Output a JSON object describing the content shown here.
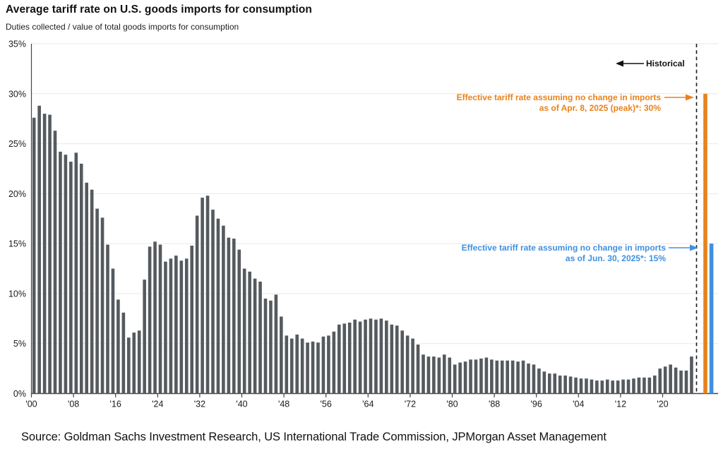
{
  "title": "Average tariff rate on U.S. goods imports for consumption",
  "subtitle": "Duties collected / value of total goods imports for consumption",
  "source": "Source: Goldman Sachs Investment Research, US International Trade Commission, JPMorgan Asset Management",
  "annotations": {
    "historical": {
      "label": "Historical",
      "color": "#111111"
    },
    "peak": {
      "line1": "Effective tariff rate assuming no change in imports",
      "line2": "as of Apr. 8, 2025 (peak)*: 30%",
      "color": "#E8821C"
    },
    "current": {
      "line1": "Effective tariff rate assuming no change in imports",
      "line2": "as of Jun. 30, 2025*: 15%",
      "color": "#4190E0"
    }
  },
  "chart_data": {
    "type": "bar",
    "title": "Average tariff rate on U.S. goods imports for consumption",
    "subtitle": "Duties collected / value of total goods imports for consumption",
    "xlabel": "",
    "ylabel": "",
    "ylim": [
      0,
      35
    ],
    "y_ticks": [
      0,
      5,
      10,
      15,
      20,
      25,
      30,
      35
    ],
    "y_tick_labels": [
      "0%",
      "5%",
      "10%",
      "15%",
      "20%",
      "25%",
      "30%",
      "35%"
    ],
    "x_tick_years": [
      1900,
      1908,
      1916,
      1924,
      1932,
      1940,
      1948,
      1956,
      1964,
      1972,
      1980,
      1988,
      1996,
      2004,
      2012,
      2020
    ],
    "x_tick_labels": [
      "'00",
      "'08",
      "'16",
      "'24",
      "'32",
      "'40",
      "'48",
      "'56",
      "'64",
      "'72",
      "'80",
      "'88",
      "'96",
      "'04",
      "'12",
      "'20"
    ],
    "grid": "horizontal",
    "legend_position": "none",
    "series": [
      {
        "name": "Historical average tariff rate",
        "color": "#555A5F",
        "start_year": 1900,
        "end_year": 2025,
        "values": [
          27.6,
          28.8,
          28.0,
          27.9,
          26.3,
          24.2,
          23.9,
          23.2,
          24.1,
          23.0,
          21.1,
          20.4,
          18.5,
          17.6,
          14.9,
          12.5,
          9.4,
          8.1,
          5.6,
          6.1,
          6.3,
          11.4,
          14.7,
          15.2,
          14.9,
          13.2,
          13.5,
          13.8,
          13.3,
          13.5,
          14.8,
          17.8,
          19.6,
          19.8,
          18.4,
          17.5,
          16.8,
          15.6,
          15.5,
          14.4,
          12.5,
          12.2,
          11.5,
          11.2,
          9.5,
          9.3,
          9.9,
          7.7,
          5.8,
          5.5,
          5.9,
          5.5,
          5.1,
          5.2,
          5.1,
          5.7,
          5.8,
          6.2,
          6.9,
          7.0,
          7.1,
          7.4,
          7.2,
          7.4,
          7.5,
          7.4,
          7.5,
          7.3,
          6.9,
          6.8,
          6.3,
          5.8,
          5.5,
          4.9,
          3.9,
          3.7,
          3.7,
          3.6,
          3.9,
          3.6,
          2.9,
          3.1,
          3.2,
          3.4,
          3.4,
          3.5,
          3.6,
          3.4,
          3.3,
          3.3,
          3.3,
          3.3,
          3.2,
          3.3,
          3.0,
          2.9,
          2.5,
          2.2,
          2.0,
          2.0,
          1.8,
          1.8,
          1.7,
          1.6,
          1.5,
          1.5,
          1.4,
          1.3,
          1.3,
          1.4,
          1.3,
          1.3,
          1.4,
          1.4,
          1.5,
          1.6,
          1.6,
          1.6,
          1.8,
          2.5,
          2.7,
          2.9,
          2.6,
          2.3,
          2.3,
          3.7
        ]
      },
      {
        "name": "Effective tariff rate assuming no change in imports as of Apr. 8, 2025 (peak)*",
        "color": "#E8821C",
        "value": 30
      },
      {
        "name": "Effective tariff rate assuming no change in imports as of Jun. 30, 2025*",
        "color": "#4190E0",
        "value": 15
      }
    ],
    "divider": {
      "style": "dashed-vertical",
      "label_left": "Historical"
    }
  }
}
